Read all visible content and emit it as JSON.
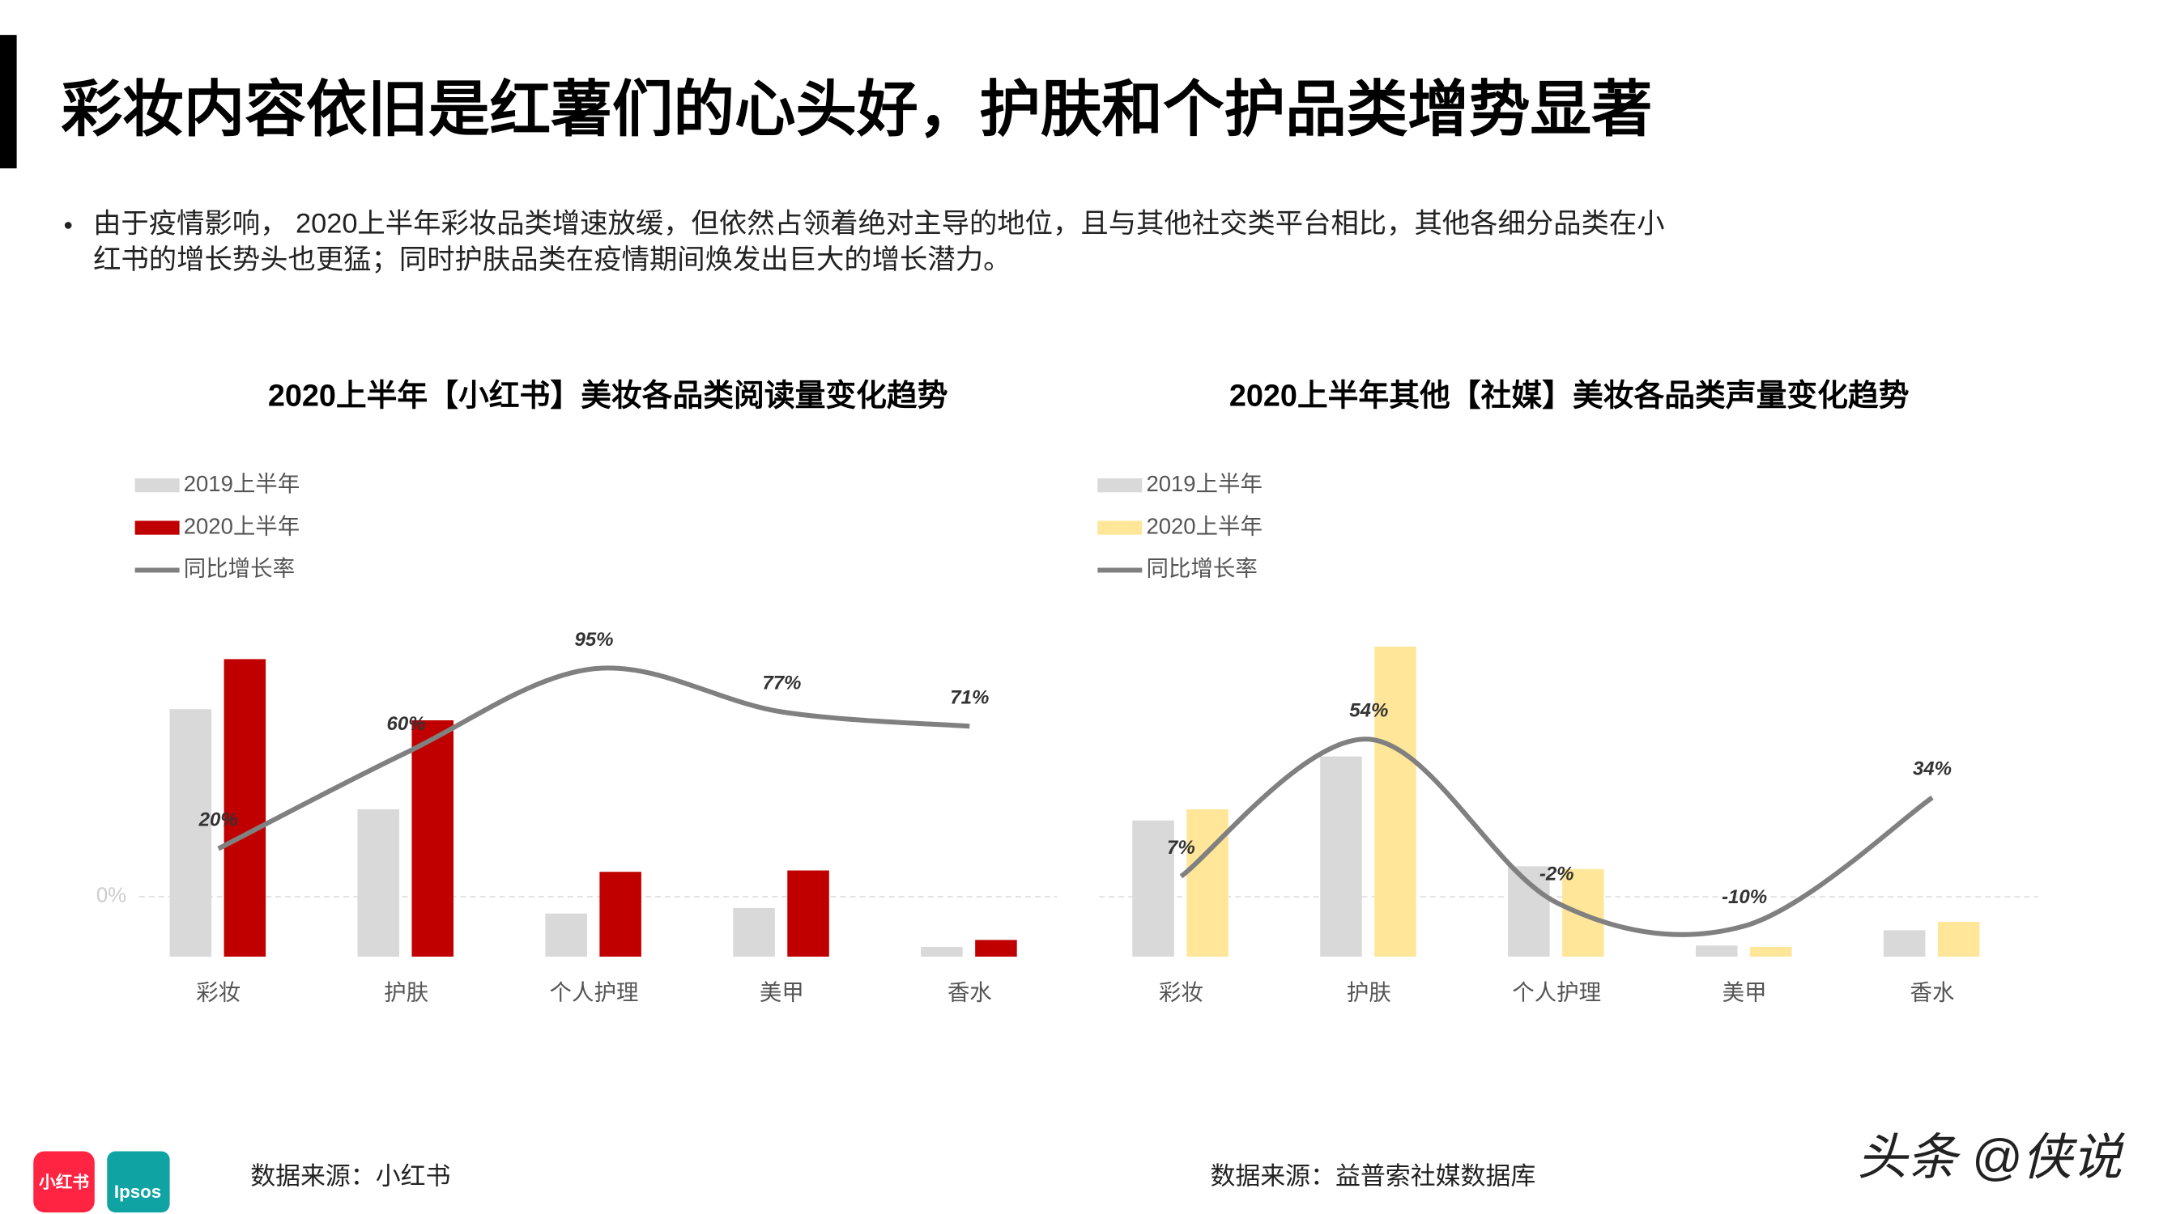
{
  "header": {
    "title": "彩妆内容依旧是红薯们的心头好，护肤和个护品类增势显著"
  },
  "bullet": {
    "lines": [
      "由于疫情影响， 2020上半年彩妆品类增速放缓，但依然占领着绝对主导的地位，且与其他社交类平台相比，其他各细分品类在小",
      "红书的增长势头也更猛；同时护肤品类在疫情期间焕发出巨大的增长潜力。"
    ]
  },
  "chart_data": [
    {
      "type": "bar_line",
      "title": "2020上半年【小红书】美妆各品类阅读量变化趋势",
      "categories": [
        "彩妆",
        "护肤",
        "个人护理",
        "美甲",
        "香水"
      ],
      "series": [
        {
          "name": "2019上半年",
          "type": "bar",
          "color": "#d9d9d9",
          "values": [
            178,
            106,
            31,
            35,
            7
          ]
        },
        {
          "name": "2020上半年",
          "type": "bar",
          "color": "#c00000",
          "values": [
            214,
            170,
            61,
            62,
            12
          ]
        },
        {
          "name": "同比增长率",
          "type": "line",
          "color": "#808080",
          "axis": "y2",
          "values": [
            20,
            60,
            95,
            77,
            71
          ],
          "value_labels": [
            "20%",
            "60%",
            "95%",
            "77%",
            "71%"
          ]
        }
      ],
      "ylim": [
        0,
        233
      ],
      "y2lim": [
        -25,
        110
      ],
      "y2ticks": [
        {
          "value": 0,
          "label": "0%"
        }
      ],
      "source": "数据来源：小红书"
    },
    {
      "type": "bar_line",
      "title": "2020上半年其他【社媒】美妆各品类声量变化趋势",
      "categories": [
        "彩妆",
        "护肤",
        "个人护理",
        "美甲",
        "香水"
      ],
      "series": [
        {
          "name": "2019上半年",
          "type": "bar",
          "color": "#d9d9d9",
          "values": [
            98,
            144,
            65,
            8,
            19
          ]
        },
        {
          "name": "2020上半年",
          "type": "bar",
          "color": "#ffe699",
          "values": [
            106,
            223,
            63,
            7,
            25
          ]
        },
        {
          "name": "同比增长率",
          "type": "line",
          "color": "#808080",
          "axis": "y2",
          "values": [
            7,
            54,
            -2,
            -10,
            34
          ],
          "value_labels": [
            "7%",
            "54%",
            "-2%",
            "-10%",
            "34%"
          ]
        }
      ],
      "ylim": [
        0,
        233
      ],
      "y2lim": [
        -20.5,
        90.5
      ],
      "zero_line": true,
      "source": "数据来源：益普索社媒数据库"
    }
  ],
  "logos": {
    "xhs": "小红书",
    "ipsos": "Ipsos"
  },
  "watermark": "头条 @侠说"
}
